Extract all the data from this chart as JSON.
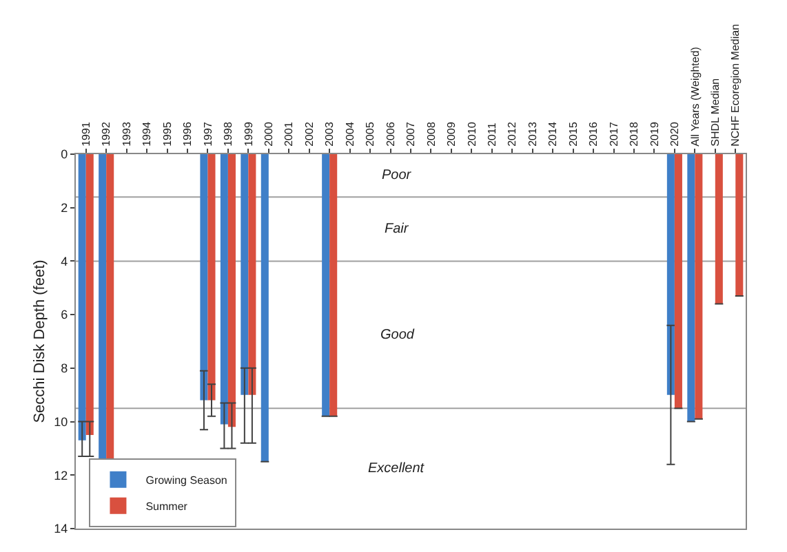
{
  "chart_data": {
    "type": "bar",
    "ylabel": "Secchi Disk Depth (feet)",
    "categories": [
      "1991",
      "1992",
      "1993",
      "1994",
      "1995",
      "1996",
      "1997",
      "1998",
      "1999",
      "2000",
      "2001",
      "2002",
      "2003",
      "2004",
      "2005",
      "2006",
      "2007",
      "2008",
      "2009",
      "2010",
      "2011",
      "2012",
      "2013",
      "2014",
      "2015",
      "2016",
      "2017",
      "2018",
      "2019",
      "2020",
      "All Years (Weighted)",
      "SHDL Median",
      "NCHF Ecoregion Median"
    ],
    "series": [
      {
        "name": "Growing Season",
        "color": "#3f7fc8",
        "values": [
          10.7,
          11.4,
          null,
          null,
          null,
          null,
          9.2,
          10.1,
          9.0,
          11.5,
          null,
          null,
          9.8,
          null,
          null,
          null,
          null,
          null,
          null,
          null,
          null,
          null,
          null,
          null,
          null,
          null,
          null,
          null,
          null,
          9.0,
          10.0,
          null,
          null
        ],
        "errors": [
          [
            10.0,
            11.3
          ],
          null,
          null,
          null,
          null,
          null,
          [
            8.1,
            10.3
          ],
          [
            9.3,
            11.0
          ],
          [
            8.0,
            10.8
          ],
          null,
          null,
          null,
          null,
          null,
          null,
          null,
          null,
          null,
          null,
          null,
          null,
          null,
          null,
          null,
          null,
          null,
          null,
          null,
          null,
          [
            6.4,
            11.6
          ],
          null,
          null,
          null
        ]
      },
      {
        "name": "Summer",
        "color": "#d9503f",
        "values": [
          10.5,
          11.5,
          null,
          null,
          null,
          null,
          9.2,
          10.2,
          9.0,
          null,
          null,
          null,
          9.8,
          null,
          null,
          null,
          null,
          null,
          null,
          null,
          null,
          null,
          null,
          null,
          null,
          null,
          null,
          null,
          null,
          9.5,
          9.9,
          5.6,
          5.3
        ],
        "errors": [
          [
            10.0,
            11.3
          ],
          null,
          null,
          null,
          null,
          null,
          [
            8.6,
            9.8
          ],
          [
            9.3,
            11.0
          ],
          [
            8.0,
            10.8
          ],
          null,
          null,
          null,
          null,
          null,
          null,
          null,
          null,
          null,
          null,
          null,
          null,
          null,
          null,
          null,
          null,
          null,
          null,
          null,
          null,
          null,
          null,
          null,
          null
        ]
      }
    ],
    "ylim": [
      14,
      0
    ],
    "yticks": [
      0,
      2,
      4,
      6,
      8,
      10,
      12,
      14
    ],
    "ref_lines": [
      {
        "axis": "y",
        "value": 1.6,
        "color": "#a0a0a0"
      },
      {
        "axis": "y",
        "value": 4,
        "color": "#a0a0a0"
      },
      {
        "axis": "y",
        "value": 9.5,
        "color": "#a0a0a0"
      }
    ],
    "annotations": [
      "Poor",
      "Fair",
      "Good",
      "Excellent"
    ],
    "grid": false,
    "legend": "bottom left"
  }
}
